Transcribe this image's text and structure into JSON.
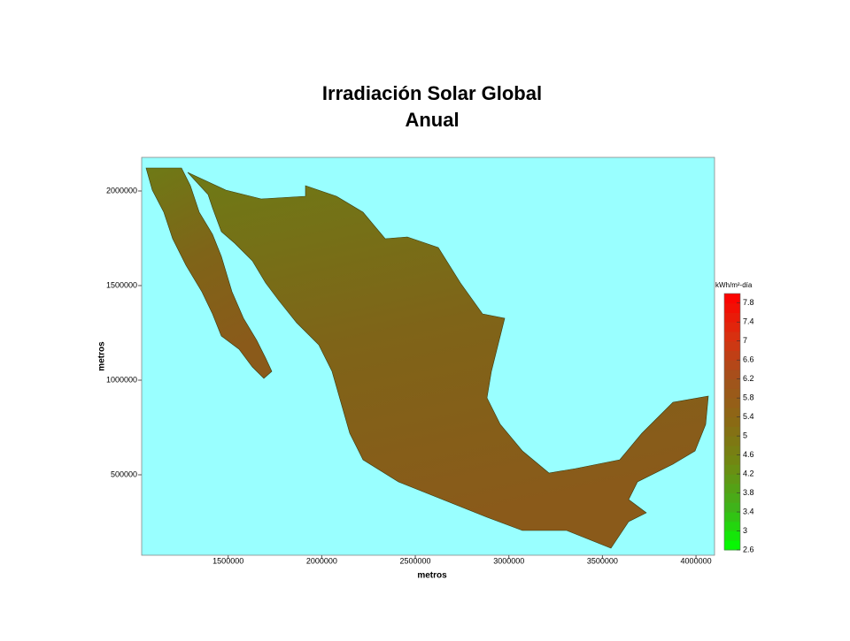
{
  "chart_data": {
    "type": "map",
    "title": [
      "Irradiación Solar Global",
      "Anual"
    ],
    "x_label": "metros",
    "y_label": "metros",
    "background": "#99ffff",
    "land_color": "#7a6a1c",
    "xlim": [
      1037700,
      4099000
    ],
    "ylim": [
      74800,
      2177600
    ],
    "xticks": [
      1500000,
      2000000,
      2500000,
      3000000,
      3500000,
      4000000
    ],
    "yticks": [
      500000,
      1000000,
      1500000,
      2000000
    ],
    "colorbar": {
      "title": "kWh/m²-día",
      "lim": [
        2.6,
        8.0
      ],
      "ticks": [
        2.6,
        3.0,
        3.4,
        3.8,
        4.2,
        4.6,
        5.0,
        5.4,
        5.8,
        6.2,
        6.6,
        7.0,
        7.4,
        7.8
      ],
      "colormap": [
        "#00ff00",
        "#3fb31a",
        "#6f8a12",
        "#8a6a14",
        "#a2521c",
        "#d83010",
        "#ff0000"
      ]
    }
  }
}
